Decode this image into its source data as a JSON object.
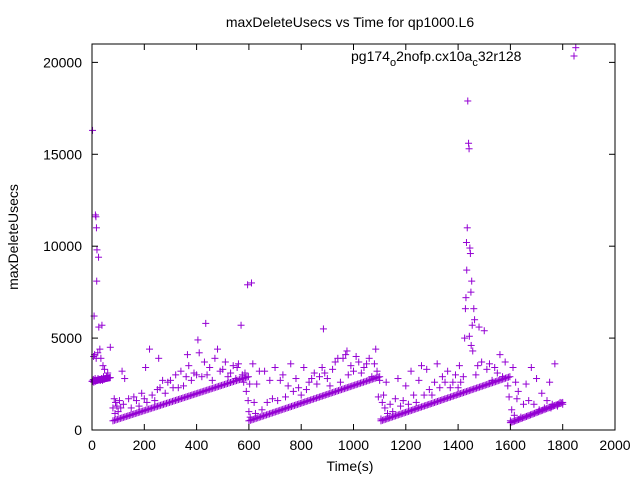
{
  "chart_data": {
    "type": "scatter",
    "title": "maxDeleteUsecs vs Time for qp1000.L6",
    "xlabel": "Time(s)",
    "ylabel": "maxDeleteUsecs",
    "xlim": [
      0,
      2000
    ],
    "ylim": [
      0,
      21000
    ],
    "xticks": [
      0,
      200,
      400,
      600,
      800,
      1000,
      1200,
      1400,
      1600,
      1800,
      2000
    ],
    "yticks": [
      0,
      5000,
      10000,
      15000,
      20000
    ],
    "x_tick_labels": [
      "0",
      "200",
      "400",
      "600",
      "800",
      "1000",
      "1200",
      "1400",
      "1600",
      "1800",
      "2000"
    ],
    "y_tick_labels": [
      "0",
      "5000",
      "10000",
      "15000",
      "20000"
    ],
    "grid": false,
    "legend_position": "top-right",
    "marker": "+",
    "series": [
      {
        "name_parts": {
          "text1": "pg174",
          "sub1": "o",
          "text2": "2nofp.cx10a",
          "sub2": "c",
          "text3": "32r128"
        },
        "color": "#9400d3",
        "points": [
          [
            2,
            16300
          ],
          [
            3,
            2650
          ],
          [
            5,
            2750
          ],
          [
            6,
            4000
          ],
          [
            7,
            2600
          ],
          [
            8,
            6200
          ],
          [
            9,
            2700
          ],
          [
            10,
            4100
          ],
          [
            12,
            2800
          ],
          [
            13,
            11700
          ],
          [
            14,
            2650
          ],
          [
            15,
            11600
          ],
          [
            16,
            3900
          ],
          [
            17,
            11000
          ],
          [
            18,
            8100
          ],
          [
            19,
            9800
          ],
          [
            20,
            2700
          ],
          [
            22,
            4200
          ],
          [
            23,
            2800
          ],
          [
            25,
            9400
          ],
          [
            26,
            5600
          ],
          [
            28,
            2750
          ],
          [
            30,
            4400
          ],
          [
            32,
            2700
          ],
          [
            34,
            3900
          ],
          [
            36,
            2800
          ],
          [
            38,
            5700
          ],
          [
            40,
            2700
          ],
          [
            42,
            3500
          ],
          [
            44,
            2900
          ],
          [
            46,
            2750
          ],
          [
            48,
            3300
          ],
          [
            50,
            2800
          ],
          [
            55,
            2900
          ],
          [
            60,
            3100
          ],
          [
            70,
            4500
          ],
          [
            80,
            1200
          ],
          [
            85,
            1700
          ],
          [
            88,
            900
          ],
          [
            90,
            1500
          ],
          [
            95,
            1300
          ],
          [
            100,
            1000
          ],
          [
            105,
            1600
          ],
          [
            110,
            1200
          ],
          [
            115,
            3200
          ],
          [
            120,
            1400
          ],
          [
            125,
            2800
          ],
          [
            140,
            1700
          ],
          [
            150,
            1200
          ],
          [
            160,
            1800
          ],
          [
            170,
            1600
          ],
          [
            180,
            1300
          ],
          [
            190,
            2000
          ],
          [
            200,
            1700
          ],
          [
            205,
            3400
          ],
          [
            210,
            1500
          ],
          [
            220,
            4400
          ],
          [
            230,
            1900
          ],
          [
            240,
            1600
          ],
          [
            250,
            2200
          ],
          [
            255,
            3900
          ],
          [
            260,
            2300
          ],
          [
            270,
            2700
          ],
          [
            280,
            2000
          ],
          [
            290,
            2600
          ],
          [
            300,
            2700
          ],
          [
            310,
            2300
          ],
          [
            320,
            3000
          ],
          [
            330,
            2300
          ],
          [
            340,
            3200
          ],
          [
            350,
            2400
          ],
          [
            360,
            2900
          ],
          [
            365,
            4100
          ],
          [
            370,
            3500
          ],
          [
            380,
            2700
          ],
          [
            390,
            3100
          ],
          [
            400,
            3000
          ],
          [
            405,
            4900
          ],
          [
            410,
            4200
          ],
          [
            420,
            2900
          ],
          [
            430,
            3700
          ],
          [
            435,
            5800
          ],
          [
            440,
            3000
          ],
          [
            450,
            3400
          ],
          [
            460,
            2700
          ],
          [
            470,
            3900
          ],
          [
            480,
            4400
          ],
          [
            490,
            3200
          ],
          [
            500,
            3300
          ],
          [
            510,
            3700
          ],
          [
            520,
            2900
          ],
          [
            530,
            3100
          ],
          [
            540,
            3500
          ],
          [
            550,
            2800
          ],
          [
            555,
            3400
          ],
          [
            560,
            3600
          ],
          [
            570,
            5700
          ],
          [
            575,
            3000
          ],
          [
            580,
            2600
          ],
          [
            585,
            3100
          ],
          [
            590,
            2100
          ],
          [
            595,
            7900
          ],
          [
            597,
            1600
          ],
          [
            600,
            1000
          ],
          [
            603,
            2500
          ],
          [
            605,
            700
          ],
          [
            610,
            8000
          ],
          [
            615,
            3600
          ],
          [
            620,
            1500
          ],
          [
            625,
            900
          ],
          [
            630,
            2500
          ],
          [
            640,
            3200
          ],
          [
            650,
            1100
          ],
          [
            660,
            3200
          ],
          [
            670,
            1500
          ],
          [
            680,
            2700
          ],
          [
            690,
            1700
          ],
          [
            700,
            3400
          ],
          [
            710,
            1600
          ],
          [
            720,
            2700
          ],
          [
            730,
            3000
          ],
          [
            740,
            1800
          ],
          [
            750,
            2400
          ],
          [
            760,
            3600
          ],
          [
            770,
            2100
          ],
          [
            780,
            2800
          ],
          [
            790,
            2300
          ],
          [
            800,
            1900
          ],
          [
            810,
            3400
          ],
          [
            820,
            2200
          ],
          [
            830,
            2600
          ],
          [
            840,
            2800
          ],
          [
            850,
            3100
          ],
          [
            860,
            2500
          ],
          [
            870,
            2900
          ],
          [
            880,
            3400
          ],
          [
            885,
            5500
          ],
          [
            890,
            3100
          ],
          [
            900,
            2800
          ],
          [
            910,
            2400
          ],
          [
            920,
            3300
          ],
          [
            930,
            3700
          ],
          [
            940,
            3900
          ],
          [
            950,
            2600
          ],
          [
            960,
            3900
          ],
          [
            970,
            4100
          ],
          [
            975,
            4300
          ],
          [
            980,
            3000
          ],
          [
            990,
            3500
          ],
          [
            1000,
            3200
          ],
          [
            1010,
            4000
          ],
          [
            1020,
            3700
          ],
          [
            1030,
            3100
          ],
          [
            1040,
            3400
          ],
          [
            1050,
            3600
          ],
          [
            1060,
            3900
          ],
          [
            1070,
            2900
          ],
          [
            1080,
            3600
          ],
          [
            1085,
            4400
          ],
          [
            1090,
            3200
          ],
          [
            1095,
            1800
          ],
          [
            1100,
            2700
          ],
          [
            1105,
            600
          ],
          [
            1110,
            1500
          ],
          [
            1115,
            1900
          ],
          [
            1120,
            1200
          ],
          [
            1125,
            2600
          ],
          [
            1130,
            900
          ],
          [
            1140,
            1400
          ],
          [
            1150,
            1000
          ],
          [
            1160,
            1700
          ],
          [
            1170,
            2800
          ],
          [
            1180,
            1300
          ],
          [
            1190,
            1600
          ],
          [
            1200,
            2400
          ],
          [
            1210,
            1400
          ],
          [
            1220,
            3200
          ],
          [
            1230,
            1900
          ],
          [
            1240,
            1500
          ],
          [
            1250,
            2700
          ],
          [
            1260,
            3500
          ],
          [
            1270,
            1900
          ],
          [
            1280,
            3300
          ],
          [
            1290,
            2200
          ],
          [
            1300,
            1900
          ],
          [
            1310,
            2600
          ],
          [
            1320,
            3600
          ],
          [
            1330,
            2300
          ],
          [
            1340,
            2900
          ],
          [
            1350,
            2600
          ],
          [
            1360,
            3200
          ],
          [
            1370,
            2300
          ],
          [
            1380,
            2600
          ],
          [
            1390,
            3000
          ],
          [
            1400,
            2300
          ],
          [
            1405,
            3500
          ],
          [
            1410,
            2600
          ],
          [
            1420,
            2900
          ],
          [
            1425,
            5000
          ],
          [
            1428,
            6600
          ],
          [
            1430,
            7200
          ],
          [
            1432,
            10200
          ],
          [
            1433,
            8700
          ],
          [
            1435,
            11000
          ],
          [
            1437,
            17900
          ],
          [
            1440,
            15600
          ],
          [
            1442,
            15300
          ],
          [
            1443,
            5100
          ],
          [
            1445,
            9900
          ],
          [
            1447,
            9600
          ],
          [
            1449,
            7500
          ],
          [
            1450,
            4600
          ],
          [
            1452,
            8100
          ],
          [
            1454,
            5700
          ],
          [
            1456,
            4300
          ],
          [
            1460,
            6600
          ],
          [
            1463,
            6000
          ],
          [
            1468,
            3000
          ],
          [
            1475,
            3500
          ],
          [
            1480,
            5600
          ],
          [
            1490,
            3700
          ],
          [
            1500,
            5400
          ],
          [
            1510,
            3300
          ],
          [
            1520,
            3600
          ],
          [
            1530,
            2700
          ],
          [
            1540,
            3400
          ],
          [
            1550,
            3100
          ],
          [
            1560,
            4100
          ],
          [
            1570,
            2900
          ],
          [
            1580,
            3700
          ],
          [
            1590,
            2400
          ],
          [
            1595,
            1800
          ],
          [
            1600,
            500
          ],
          [
            1605,
            1100
          ],
          [
            1610,
            3400
          ],
          [
            1615,
            800
          ],
          [
            1620,
            2600
          ],
          [
            1625,
            1700
          ],
          [
            1630,
            2100
          ],
          [
            1640,
            700
          ],
          [
            1650,
            1400
          ],
          [
            1660,
            2500
          ],
          [
            1670,
            1600
          ],
          [
            1680,
            3400
          ],
          [
            1690,
            1400
          ],
          [
            1700,
            2800
          ],
          [
            1710,
            1100
          ],
          [
            1720,
            2000
          ],
          [
            1730,
            1200
          ],
          [
            1740,
            1600
          ],
          [
            1750,
            2600
          ],
          [
            1755,
            1200
          ],
          [
            1760,
            1400
          ],
          [
            1770,
            3600
          ],
          [
            1780,
            1300
          ],
          [
            1790,
            1500
          ],
          [
            1800,
            1400
          ],
          [
            1850,
            20800
          ]
        ],
        "bands": [
          {
            "x0": 0,
            "x1": 70,
            "y0": 2650,
            "y1": 2850,
            "n": 34
          },
          {
            "x0": 80,
            "x1": 598,
            "y0": 500,
            "y1": 2900,
            "n": 92
          },
          {
            "x0": 600,
            "x1": 1100,
            "y0": 500,
            "y1": 2900,
            "n": 90
          },
          {
            "x0": 1105,
            "x1": 1598,
            "y0": 500,
            "y1": 2900,
            "n": 90
          },
          {
            "x0": 1600,
            "x1": 1800,
            "y0": 400,
            "y1": 1500,
            "n": 40
          }
        ]
      }
    ]
  }
}
